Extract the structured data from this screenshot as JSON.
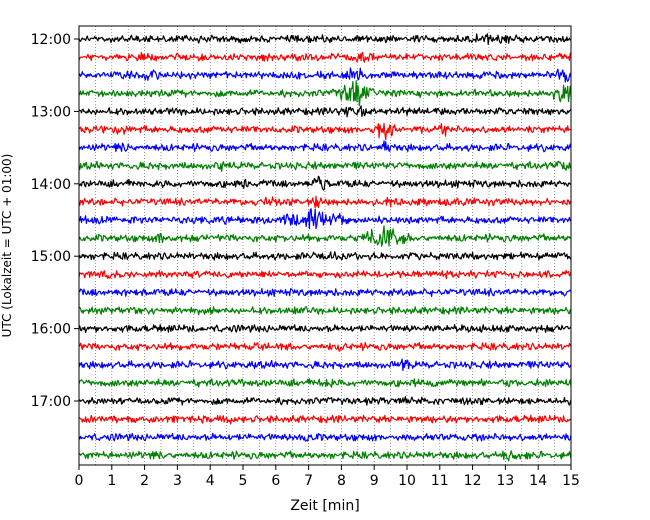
{
  "chart_data": {
    "type": "line",
    "xlabel": "Zeit  [min]",
    "ylabel": "UTC (Lokalzeit = UTC + 01:00)",
    "x_range": [
      0,
      15
    ],
    "x_ticks": [
      "0",
      "1",
      "2",
      "3",
      "4",
      "5",
      "6",
      "7",
      "8",
      "9",
      "10",
      "11",
      "12",
      "13",
      "14",
      "15"
    ],
    "y_ticks": [
      "12:00",
      "13:00",
      "14:00",
      "15:00",
      "16:00",
      "17:00"
    ],
    "grid": "vertical-dotted",
    "trace_interval_minutes": 15,
    "trace_colors": [
      "#000000",
      "#ff0000",
      "#0000ff",
      "#008000"
    ],
    "traces": [
      {
        "start": "12:00",
        "color": "#000000",
        "events": [
          {
            "t": 12.6,
            "amp": 0.35,
            "dur": 0.8
          }
        ]
      },
      {
        "start": "12:15",
        "color": "#ff0000",
        "events": [
          {
            "t": 1.6,
            "amp": 0.35,
            "dur": 0.4
          },
          {
            "t": 8.6,
            "amp": 0.7,
            "dur": 0.4
          }
        ]
      },
      {
        "start": "12:30",
        "color": "#0000ff",
        "events": [
          {
            "t": 2.2,
            "amp": 0.6,
            "dur": 0.4
          },
          {
            "t": 8.4,
            "amp": 0.8,
            "dur": 0.5
          },
          {
            "t": 14.8,
            "amp": 1.2,
            "dur": 0.3
          }
        ]
      },
      {
        "start": "12:45",
        "color": "#008000",
        "events": [
          {
            "t": 8.4,
            "amp": 1.6,
            "dur": 0.8
          },
          {
            "t": 14.8,
            "amp": 1.4,
            "dur": 0.4
          }
        ]
      },
      {
        "start": "13:00",
        "color": "#000000",
        "events": [
          {
            "t": 8.3,
            "amp": 0.6,
            "dur": 0.5
          }
        ]
      },
      {
        "start": "13:15",
        "color": "#ff0000",
        "events": [
          {
            "t": 1.3,
            "amp": 0.5,
            "dur": 0.3
          },
          {
            "t": 9.3,
            "amp": 1.3,
            "dur": 0.4
          },
          {
            "t": 11.1,
            "amp": 0.6,
            "dur": 0.2
          }
        ]
      },
      {
        "start": "13:30",
        "color": "#0000ff",
        "events": [
          {
            "t": 1.3,
            "amp": 0.5,
            "dur": 0.3
          },
          {
            "t": 9.3,
            "amp": 0.5,
            "dur": 0.3
          }
        ]
      },
      {
        "start": "13:45",
        "color": "#008000",
        "events": [
          {
            "t": 4.4,
            "amp": 0.4,
            "dur": 0.3
          },
          {
            "t": 14.8,
            "amp": 0.5,
            "dur": 0.3
          }
        ]
      },
      {
        "start": "14:00",
        "color": "#000000",
        "events": [
          {
            "t": 5.0,
            "amp": 0.5,
            "dur": 0.3
          },
          {
            "t": 7.3,
            "amp": 0.9,
            "dur": 0.3
          }
        ]
      },
      {
        "start": "14:15",
        "color": "#ff0000",
        "events": [
          {
            "t": 5.8,
            "amp": 0.7,
            "dur": 0.2
          },
          {
            "t": 7.3,
            "amp": 1.1,
            "dur": 0.2
          },
          {
            "t": 9.6,
            "amp": 0.6,
            "dur": 0.3
          }
        ]
      },
      {
        "start": "14:30",
        "color": "#0000ff",
        "events": [
          {
            "t": 4.4,
            "amp": 0.6,
            "dur": 0.3
          },
          {
            "t": 7.2,
            "amp": 1.3,
            "dur": 1.2
          }
        ]
      },
      {
        "start": "14:45",
        "color": "#008000",
        "events": [
          {
            "t": 2.5,
            "amp": 0.6,
            "dur": 0.2
          },
          {
            "t": 9.3,
            "amp": 1.4,
            "dur": 0.9
          }
        ]
      },
      {
        "start": "15:00",
        "color": "#000000",
        "events": [
          {
            "t": 7.5,
            "amp": 0.4,
            "dur": 0.4
          }
        ]
      },
      {
        "start": "15:15",
        "color": "#ff0000",
        "events": [
          {
            "t": 14.2,
            "amp": 0.4,
            "dur": 0.3
          }
        ]
      },
      {
        "start": "15:30",
        "color": "#0000ff",
        "events": []
      },
      {
        "start": "15:45",
        "color": "#008000",
        "events": [
          {
            "t": 6.8,
            "amp": 0.3,
            "dur": 0.3
          }
        ]
      },
      {
        "start": "16:00",
        "color": "#000000",
        "events": []
      },
      {
        "start": "16:15",
        "color": "#ff0000",
        "events": [
          {
            "t": 7.9,
            "amp": 0.3,
            "dur": 0.3
          }
        ]
      },
      {
        "start": "16:30",
        "color": "#0000ff",
        "events": [
          {
            "t": 9.9,
            "amp": 0.4,
            "dur": 0.3
          }
        ]
      },
      {
        "start": "16:45",
        "color": "#008000",
        "events": [
          {
            "t": 7.6,
            "amp": 0.3,
            "dur": 0.3
          }
        ]
      },
      {
        "start": "17:00",
        "color": "#000000",
        "events": []
      },
      {
        "start": "17:15",
        "color": "#ff0000",
        "events": [
          {
            "t": 4.5,
            "amp": 0.3,
            "dur": 0.3
          }
        ]
      },
      {
        "start": "17:30",
        "color": "#0000ff",
        "events": [
          {
            "t": 6.9,
            "amp": 0.3,
            "dur": 0.4
          }
        ]
      },
      {
        "start": "17:45",
        "color": "#008000",
        "events": [
          {
            "t": 2.4,
            "amp": 0.4,
            "dur": 0.2
          },
          {
            "t": 13.2,
            "amp": 0.4,
            "dur": 0.6
          }
        ]
      }
    ]
  }
}
